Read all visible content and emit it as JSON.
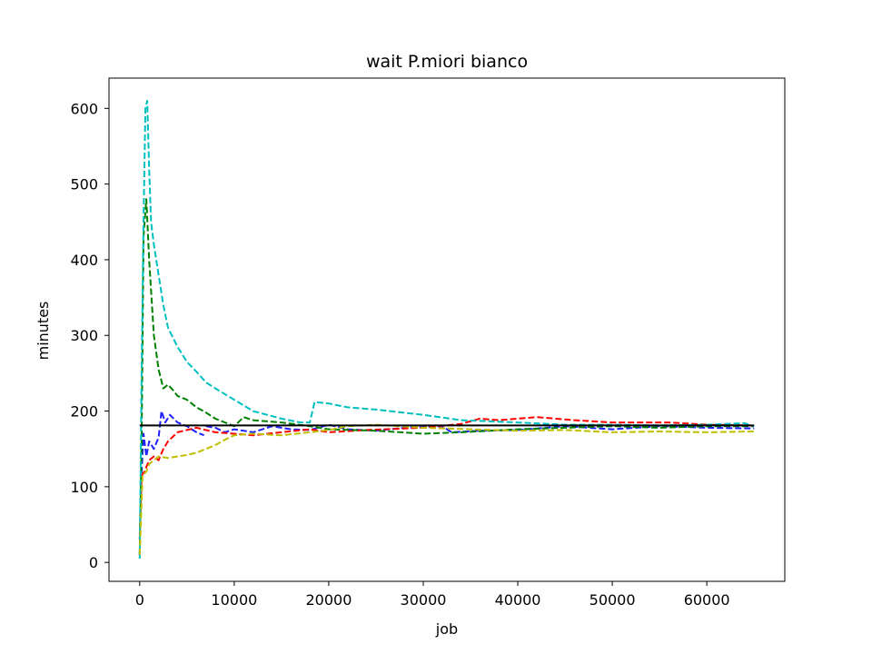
{
  "chart_data": {
    "type": "line",
    "title": "wait P.miori bianco",
    "xlabel": "job",
    "ylabel": "minutes",
    "xlim": [
      -3250,
      68250
    ],
    "ylim": [
      -25,
      640
    ],
    "xticks": [
      0,
      10000,
      20000,
      30000,
      40000,
      50000,
      60000
    ],
    "xtick_labels": [
      "0",
      "10000",
      "20000",
      "30000",
      "40000",
      "50000",
      "60000"
    ],
    "yticks": [
      0,
      100,
      200,
      300,
      400,
      500,
      600
    ],
    "ytick_labels": [
      "0",
      "100",
      "200",
      "300",
      "400",
      "500",
      "600"
    ],
    "grid": false,
    "legend": "none",
    "series": [
      {
        "color": "#1f1fff",
        "dash": "dashed",
        "x": [
          0,
          200,
          400,
          700,
          1000,
          1500,
          2000,
          2300,
          2700,
          3200,
          4000,
          5000,
          6000,
          6800
        ],
        "y": [
          10,
          120,
          170,
          140,
          160,
          150,
          165,
          200,
          185,
          195,
          185,
          180,
          172,
          168
        ]
      },
      {
        "color": "#1f1fff",
        "dash": "dashed",
        "x": [
          7000,
          8000,
          9000,
          10000,
          12000,
          14000,
          16000,
          18000,
          20000,
          22000,
          25000,
          28000,
          32000,
          33000,
          36000,
          40000,
          45000,
          50000,
          55000,
          60000,
          65000
        ],
        "y": [
          180,
          178,
          172,
          176,
          172,
          180,
          176,
          175,
          182,
          176,
          174,
          178,
          180,
          172,
          174,
          175,
          180,
          176,
          180,
          178,
          177
        ]
      },
      {
        "color": "#ff0000",
        "dash": "dashed",
        "x": [
          0,
          200,
          500,
          1000,
          1500,
          2000,
          2500,
          3000,
          4000,
          5000,
          6000,
          8000,
          10000,
          12000,
          15000,
          18000,
          20000,
          24000,
          30000,
          34000,
          36000,
          38000,
          42000,
          46000,
          50000,
          56000,
          60000,
          65000
        ],
        "y": [
          30,
          115,
          120,
          135,
          140,
          135,
          150,
          160,
          172,
          175,
          178,
          172,
          170,
          168,
          172,
          176,
          172,
          175,
          178,
          183,
          190,
          188,
          192,
          188,
          185,
          185,
          182,
          181
        ]
      },
      {
        "color": "#008000",
        "dash": "dashed",
        "x": [
          0,
          200,
          400,
          700,
          1000,
          1500,
          2000,
          2500,
          3000,
          3500,
          4000,
          5000,
          6000,
          7000,
          8000,
          10000,
          11000,
          12000,
          15000,
          18000,
          20000,
          25000,
          30000,
          34000,
          40000,
          45000,
          50000,
          55000,
          60000,
          65000
        ],
        "y": [
          10,
          160,
          430,
          480,
          400,
          300,
          255,
          230,
          235,
          228,
          220,
          215,
          205,
          198,
          190,
          180,
          192,
          188,
          185,
          180,
          176,
          174,
          170,
          172,
          176,
          178,
          180,
          178,
          180,
          180
        ]
      },
      {
        "color": "#00bfbf",
        "dash": "dashed",
        "x": [
          0,
          200,
          400,
          600,
          800,
          1000,
          1200,
          1500,
          2000,
          2500,
          3000,
          4000,
          5000,
          6000,
          7000,
          8000,
          10000,
          12000,
          15000,
          17000,
          18000,
          18500,
          20000,
          22000,
          25000,
          30000,
          34000,
          40000,
          45000,
          50000,
          55000,
          60000,
          64000,
          65000
        ],
        "y": [
          5,
          250,
          450,
          600,
          610,
          520,
          450,
          420,
          380,
          340,
          310,
          285,
          265,
          252,
          238,
          230,
          215,
          200,
          190,
          185,
          185,
          212,
          210,
          205,
          202,
          195,
          188,
          185,
          182,
          182,
          181,
          182,
          184,
          180
        ]
      },
      {
        "color": "#bfbf00",
        "dash": "dashed",
        "x": [
          0,
          300,
          700,
          1000,
          2000,
          3000,
          4000,
          5000,
          6000,
          7000,
          8000,
          9000,
          10000,
          12000,
          15000,
          18000,
          20000,
          22000,
          25000,
          30000,
          35000,
          40000,
          45000,
          50000,
          55000,
          60000,
          65000
        ],
        "y": [
          10,
          115,
          120,
          130,
          140,
          138,
          140,
          142,
          145,
          150,
          155,
          162,
          168,
          170,
          168,
          172,
          175,
          180,
          182,
          178,
          176,
          174,
          175,
          172,
          173,
          172,
          173
        ]
      },
      {
        "color": "#000000",
        "dash": "solid",
        "x": [
          0,
          65000
        ],
        "y": [
          181,
          181
        ]
      }
    ]
  }
}
